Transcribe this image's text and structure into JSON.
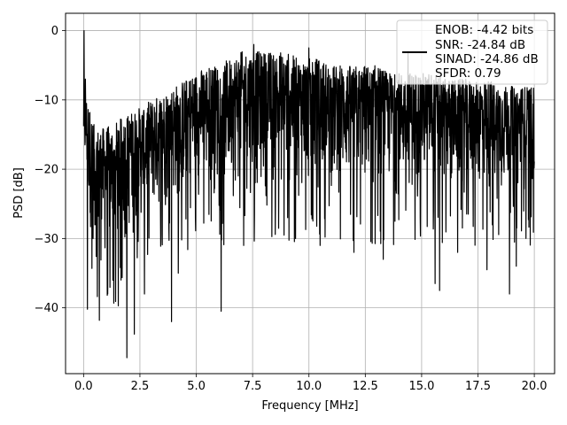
{
  "chart_data": {
    "type": "line",
    "title": "",
    "xlabel": "Frequency [MHz]",
    "ylabel": "PSD [dB]",
    "xlim": [
      -0.8,
      20.9
    ],
    "ylim": [
      -49.5,
      2.5
    ],
    "xticks": [
      0.0,
      2.5,
      5.0,
      7.5,
      10.0,
      12.5,
      15.0,
      17.5,
      20.0
    ],
    "xtick_labels": [
      "0.0",
      "2.5",
      "5.0",
      "7.5",
      "10.0",
      "12.5",
      "15.0",
      "17.5",
      "20.0"
    ],
    "yticks": [
      0,
      -10,
      -20,
      -30,
      -40
    ],
    "ytick_labels": [
      "0",
      "−10",
      "−20",
      "−30",
      "−40"
    ],
    "grid": true,
    "legend_position": "top-right",
    "legend_lines": [
      "ENOB: -4.42 bits",
      "SNR: -24.84 dB",
      "SINAD: -24.86 dB",
      "SFDR: 0.79"
    ],
    "series": [
      {
        "color": "#000000",
        "x_range": [
          0.0,
          20.0
        ],
        "envelope_x": [
          0.0,
          0.5,
          1.0,
          1.5,
          2.0,
          2.5,
          3.0,
          3.5,
          4.0,
          4.5,
          5.0,
          5.5,
          6.0,
          6.5,
          7.0,
          7.5,
          8.0,
          8.5,
          9.0,
          9.5,
          10.0,
          10.5,
          11.0,
          11.5,
          12.0,
          12.5,
          13.0,
          13.5,
          14.0,
          14.5,
          15.0,
          15.5,
          16.0,
          16.5,
          17.0,
          17.5,
          18.0,
          18.5,
          19.0,
          19.5,
          20.0
        ],
        "envelope_upper": [
          -8,
          -14,
          -14,
          -13,
          -12,
          -11,
          -10,
          -9,
          -8,
          -7,
          -6,
          -5,
          -5,
          -4,
          -3,
          -3,
          -3,
          -3,
          -3,
          -4,
          -4,
          -4,
          -5,
          -5,
          -5,
          -5,
          -5,
          -6,
          -6,
          -6,
          -6,
          -6,
          -7,
          -7,
          -7,
          -7,
          -7,
          -8,
          -8,
          -8,
          -8
        ],
        "envelope_lower": [
          -22,
          -35,
          -36,
          -34,
          -32,
          -30,
          -29,
          -28,
          -27,
          -26,
          -25,
          -25,
          -25,
          -25,
          -25,
          -25,
          -25,
          -25,
          -25,
          -25,
          -25,
          -25,
          -25,
          -25,
          -25,
          -25,
          -25,
          -25,
          -25,
          -25,
          -25,
          -25,
          -25,
          -25,
          -25,
          -25,
          -25,
          -25,
          -25,
          -25,
          -25
        ],
        "peaks": [
          {
            "x": 0.02,
            "y": 0.0
          },
          {
            "x": 0.08,
            "y": -7.0
          },
          {
            "x": 14.4,
            "y": -3.0
          },
          {
            "x": 7.55,
            "y": -2.0
          },
          {
            "x": 10.0,
            "y": -2.5
          }
        ],
        "dips": [
          {
            "x": 1.92,
            "y": -47.2
          },
          {
            "x": 2.25,
            "y": -43.8
          },
          {
            "x": 0.7,
            "y": -41.8
          },
          {
            "x": 0.17,
            "y": -40.2
          },
          {
            "x": 3.9,
            "y": -42.0
          },
          {
            "x": 6.1,
            "y": -40.5
          },
          {
            "x": 2.7,
            "y": -38.0
          },
          {
            "x": 4.2,
            "y": -35.0
          },
          {
            "x": 1.3,
            "y": -36.0
          },
          {
            "x": 15.8,
            "y": -37.5
          },
          {
            "x": 15.6,
            "y": -36.5
          },
          {
            "x": 17.9,
            "y": -34.5
          },
          {
            "x": 18.9,
            "y": -38.0
          },
          {
            "x": 19.2,
            "y": -34.0
          },
          {
            "x": 12.0,
            "y": -32.0
          },
          {
            "x": 13.3,
            "y": -33.0
          },
          {
            "x": 10.5,
            "y": -31.0
          },
          {
            "x": 9.4,
            "y": -30.0
          },
          {
            "x": 16.6,
            "y": -32.0
          },
          {
            "x": 7.1,
            "y": -31.0
          }
        ]
      }
    ]
  }
}
